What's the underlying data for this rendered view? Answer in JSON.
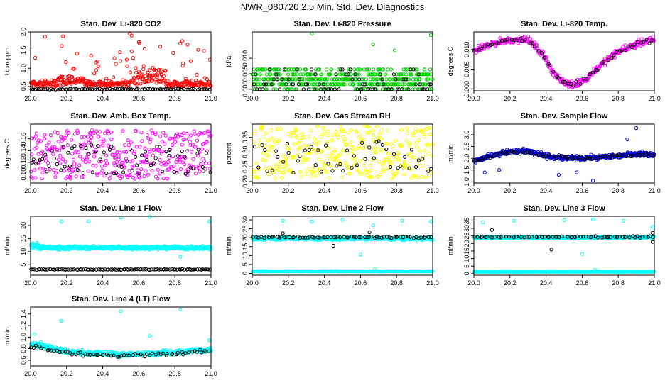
{
  "page": {
    "title": "NWR_080720  2.5 Min. Std. Dev. Diagnostics"
  },
  "chart_data": [
    {
      "type": "scatter",
      "title": "Stan. Dev. Li-820 CO2",
      "xlabel": "",
      "ylabel": "Licor ppm",
      "xlim": [
        20.0,
        21.0
      ],
      "ylim": [
        0.38,
        2.0
      ],
      "yticks": [
        0.5,
        1.0,
        1.5,
        2.0
      ],
      "grid": false,
      "series": [
        {
          "name": "",
          "color": "#ff0000",
          "gen": {
            "kind": "noise",
            "n": 380,
            "base": 0.57,
            "spread": 0.13,
            "spikes": 0.12,
            "spikeMax": 1.05,
            "bumps": [
              [
                20.55,
                20.75,
                0.4
              ],
              [
                20.15,
                20.3,
                0.15
              ]
            ],
            "outliers": [
              [
                20.08,
                1.87
              ],
              [
                20.18,
                1.88
              ],
              [
                20.55,
                1.95
              ],
              [
                20.56,
                1.9
              ],
              [
                20.6,
                1.72
              ],
              [
                20.84,
                1.75
              ],
              [
                20.87,
                1.65
              ]
            ]
          }
        },
        {
          "name": "",
          "color": "#000000",
          "gen": {
            "kind": "noise",
            "n": 90,
            "base": 0.42,
            "spread": 0.03,
            "spikes": 0.03,
            "spikeMax": 0.12
          }
        }
      ]
    },
    {
      "type": "scatter",
      "title": "Stan. Dev. Li-820 Pressure",
      "xlabel": "",
      "ylabel": "kPa",
      "xlim": [
        20.0,
        21.0
      ],
      "ylim": [
        -0.0005,
        0.0185
      ],
      "yticks": [
        0.0,
        0.005,
        0.01
      ],
      "ytickFormat": "0.000",
      "grid": false,
      "series": [
        {
          "name": "",
          "color": "#00cc00",
          "gen": {
            "kind": "levels",
            "n": 420,
            "levels": [
              0.0,
              0.0016,
              0.0032,
              0.0048,
              0.0064
            ],
            "weights": [
              2,
              3,
              3,
              3,
              2
            ],
            "outliers": [
              [
                20.33,
                0.018
              ],
              [
                20.67,
                0.0145
              ],
              [
                20.79,
                0.0125
              ],
              [
                20.99,
                0.0175
              ]
            ]
          }
        },
        {
          "name": "",
          "color": "#000000",
          "gen": {
            "kind": "levels",
            "n": 80,
            "levels": [
              0.0,
              0.0016,
              0.0032,
              0.0048,
              0.0064
            ],
            "weights": [
              4,
              2,
              2,
              1,
              1
            ]
          }
        }
      ]
    },
    {
      "type": "scatter",
      "title": "Stan. Dev. Li-820 Temp.",
      "xlabel": "",
      "ylabel": "degrees C",
      "xlim": [
        20.0,
        21.0
      ],
      "ylim": [
        -0.0005,
        0.0145
      ],
      "yticks": [
        0.0,
        0.005,
        0.01
      ],
      "ytickFormat": "0.000",
      "grid": false,
      "series": [
        {
          "name": "",
          "color": "#ff00ff",
          "gen": {
            "kind": "curve",
            "n": 340,
            "curve": [
              [
                20.0,
                0.0095
              ],
              [
                20.1,
                0.0115
              ],
              [
                20.2,
                0.0125
              ],
              [
                20.3,
                0.0125
              ],
              [
                20.38,
                0.009
              ],
              [
                20.45,
                0.0035
              ],
              [
                20.5,
                0.0015
              ],
              [
                20.55,
                0.001
              ],
              [
                20.62,
                0.0025
              ],
              [
                20.7,
                0.006
              ],
              [
                20.8,
                0.0095
              ],
              [
                20.9,
                0.0115
              ],
              [
                21.0,
                0.0125
              ]
            ],
            "spread": 0.0012
          }
        },
        {
          "name": "",
          "color": "#000000",
          "gen": {
            "kind": "curve",
            "n": 60,
            "curve": [
              [
                20.0,
                0.0095
              ],
              [
                20.1,
                0.0115
              ],
              [
                20.2,
                0.0125
              ],
              [
                20.3,
                0.0125
              ],
              [
                20.38,
                0.009
              ],
              [
                20.45,
                0.0035
              ],
              [
                20.5,
                0.0015
              ],
              [
                20.55,
                0.001
              ],
              [
                20.62,
                0.0025
              ],
              [
                20.7,
                0.006
              ],
              [
                20.8,
                0.0095
              ],
              [
                20.9,
                0.0115
              ],
              [
                21.0,
                0.0125
              ]
            ],
            "spread": 0.0008
          }
        }
      ]
    },
    {
      "type": "scatter",
      "title": "Stan. Dev. Amb. Box Temp.",
      "xlabel": "",
      "ylabel": "degrees C",
      "xlim": [
        20.0,
        21.0
      ],
      "ylim": [
        0.085,
        0.185
      ],
      "yticks": [
        0.1,
        0.12,
        0.14,
        0.16
      ],
      "grid": false,
      "series": [
        {
          "name": "",
          "color": "#ff00ff",
          "gen": {
            "kind": "uniform",
            "n": 360,
            "lo": 0.092,
            "hi": 0.175
          }
        },
        {
          "name": "",
          "color": "#000000",
          "gen": {
            "kind": "uniform",
            "n": 70,
            "lo": 0.1,
            "hi": 0.15
          }
        }
      ]
    },
    {
      "type": "scatter",
      "title": "Stan. Dev. Gas Stream RH",
      "xlabel": "",
      "ylabel": "percent",
      "xlim": [
        20.0,
        21.0
      ],
      "ylim": [
        0.195,
        0.395
      ],
      "yticks": [
        0.2,
        0.25,
        0.3,
        0.35
      ],
      "grid": false,
      "series": [
        {
          "name": "",
          "color": "#ffff00",
          "gen": {
            "kind": "uniform",
            "n": 360,
            "lo": 0.21,
            "hi": 0.39
          }
        },
        {
          "name": "",
          "color": "#000000",
          "gen": {
            "kind": "uniform",
            "n": 50,
            "lo": 0.23,
            "hi": 0.34
          }
        }
      ]
    },
    {
      "type": "scatter",
      "title": "Stan. Dev. Sample Flow",
      "xlabel": "",
      "ylabel": "ml/min",
      "xlim": [
        20.0,
        21.0
      ],
      "ylim": [
        0.95,
        3.45
      ],
      "yticks": [
        1.0,
        1.5,
        2.0,
        2.5,
        3.0
      ],
      "grid": false,
      "series": [
        {
          "name": "",
          "color": "#0000cc",
          "gen": {
            "kind": "curve",
            "n": 420,
            "curve": [
              [
                20.0,
                1.9
              ],
              [
                20.1,
                2.1
              ],
              [
                20.2,
                2.3
              ],
              [
                20.3,
                2.3
              ],
              [
                20.4,
                2.1
              ],
              [
                20.5,
                2.0
              ],
              [
                20.6,
                2.0
              ],
              [
                20.7,
                2.05
              ],
              [
                20.8,
                2.1
              ],
              [
                20.9,
                2.2
              ],
              [
                21.0,
                2.15
              ]
            ],
            "spread": 0.14,
            "outliers": [
              [
                20.06,
                1.4
              ],
              [
                20.14,
                1.5
              ],
              [
                20.47,
                1.3
              ],
              [
                20.57,
                1.4
              ],
              [
                20.66,
                1.05
              ],
              [
                20.9,
                3.28
              ],
              [
                20.85,
                2.8
              ]
            ]
          }
        },
        {
          "name": "",
          "color": "#000000",
          "gen": {
            "kind": "curve",
            "n": 60,
            "curve": [
              [
                20.0,
                1.9
              ],
              [
                20.2,
                2.3
              ],
              [
                20.4,
                2.1
              ],
              [
                20.6,
                2.0
              ],
              [
                20.8,
                2.1
              ],
              [
                21.0,
                2.15
              ]
            ],
            "spread": 0.1
          }
        }
      ]
    },
    {
      "type": "scatter",
      "title": "Stan. Dev. Line 1 Flow",
      "xlabel": "",
      "ylabel": "ml/min",
      "xlim": [
        20.0,
        21.0
      ],
      "ylim": [
        1.0,
        23.5
      ],
      "yticks": [
        5,
        10,
        15,
        20
      ],
      "grid": false,
      "series": [
        {
          "name": "",
          "color": "#00ffff",
          "gen": {
            "kind": "noise",
            "n": 440,
            "base": 11.5,
            "spread": 1.0,
            "spikes": 0.0,
            "spikeMax": 0,
            "bumps": [
              [
                20.0,
                20.04,
                1.5
              ]
            ],
            "outliers": [
              [
                20.17,
                21.5
              ],
              [
                20.32,
                21.5
              ],
              [
                20.5,
                23.0
              ],
              [
                20.66,
                23.3
              ],
              [
                20.99,
                21.5
              ],
              [
                20.83,
                8.0
              ]
            ]
          }
        },
        {
          "name": "",
          "color": "#000000",
          "gen": {
            "kind": "noise",
            "n": 100,
            "base": 3.2,
            "spread": 0.2,
            "spikes": 0.0,
            "spikeMax": 0
          }
        }
      ]
    },
    {
      "type": "scatter",
      "title": "Stan. Dev. Line 2 Flow",
      "xlabel": "",
      "ylabel": "ml/min",
      "xlim": [
        20.0,
        21.0
      ],
      "ylim": [
        -1.0,
        32.0
      ],
      "yticks": [
        0,
        5,
        10,
        15,
        20,
        25,
        30
      ],
      "grid": false,
      "series": [
        {
          "name": "",
          "color": "#00ffff",
          "gen": {
            "kind": "noise",
            "n": 360,
            "base": 19.5,
            "spread": 1.1,
            "spikes": 0.0,
            "spikeMax": 0,
            "outliers": [
              [
                20.17,
                29.5
              ],
              [
                20.33,
                29.0
              ],
              [
                20.5,
                30.0
              ],
              [
                20.6,
                10.5
              ],
              [
                20.67,
                27.0
              ],
              [
                20.83,
                29.5
              ],
              [
                20.99,
                29.0
              ]
            ]
          }
        },
        {
          "name": "",
          "color": "#00ffff",
          "gen": {
            "kind": "noise",
            "n": 300,
            "base": 1.2,
            "spread": 0.2,
            "spikes": 0.0,
            "spikeMax": 0,
            "outliers": [
              [
                20.68,
                2.5
              ]
            ]
          }
        },
        {
          "name": "",
          "color": "#000000",
          "gen": {
            "kind": "noise",
            "n": 70,
            "base": 20.3,
            "spread": 0.7,
            "spikes": 0.0,
            "spikeMax": 0,
            "outliers": [
              [
                20.45,
                15.5
              ],
              [
                20.17,
                22.5
              ],
              [
                20.65,
                23.0
              ]
            ]
          }
        }
      ]
    },
    {
      "type": "scatter",
      "title": "Stan. Dev. Line 3 Flow",
      "xlabel": "",
      "ylabel": "ml/min",
      "xlim": [
        20.0,
        21.0
      ],
      "ylim": [
        -1.0,
        38.0
      ],
      "yticks": [
        0,
        5,
        10,
        15,
        20,
        25,
        30,
        35
      ],
      "grid": false,
      "series": [
        {
          "name": "",
          "color": "#00ffff",
          "gen": {
            "kind": "noise",
            "n": 360,
            "base": 24.0,
            "spread": 1.0,
            "spikes": 0.0,
            "spikeMax": 0,
            "outliers": [
              [
                20.05,
                34.0
              ],
              [
                20.22,
                35.0
              ],
              [
                20.5,
                35.5
              ],
              [
                20.66,
                36.0
              ],
              [
                20.83,
                35.0
              ],
              [
                20.6,
                13.0
              ],
              [
                20.99,
                31.0
              ]
            ]
          }
        },
        {
          "name": "",
          "color": "#00ffff",
          "gen": {
            "kind": "noise",
            "n": 300,
            "base": 1.3,
            "spread": 0.2,
            "spikes": 0.0,
            "spikeMax": 0,
            "outliers": [
              [
                20.67,
                2.5
              ]
            ]
          }
        },
        {
          "name": "",
          "color": "#000000",
          "gen": {
            "kind": "noise",
            "n": 70,
            "base": 24.3,
            "spread": 0.8,
            "spikes": 0.0,
            "spikeMax": 0,
            "outliers": [
              [
                20.1,
                29.0
              ],
              [
                20.43,
                16.0
              ],
              [
                20.99,
                21.0
              ],
              [
                20.99,
                27.0
              ]
            ]
          }
        }
      ]
    },
    {
      "type": "scatter",
      "title": "Stan. Dev. Line 4 (LT) Flow",
      "xlabel": "",
      "ylabel": "ml/min",
      "xlim": [
        20.0,
        21.0
      ],
      "ylim": [
        0.5,
        1.52
      ],
      "yticks": [
        0.6,
        0.8,
        1.0,
        1.2,
        1.4
      ],
      "grid": false,
      "series": [
        {
          "name": "",
          "color": "#00ffff",
          "gen": {
            "kind": "curve",
            "n": 420,
            "curve": [
              [
                20.0,
                0.9
              ],
              [
                20.1,
                0.83
              ],
              [
                20.2,
                0.75
              ],
              [
                20.3,
                0.72
              ],
              [
                20.4,
                0.72
              ],
              [
                20.5,
                0.7
              ],
              [
                20.6,
                0.7
              ],
              [
                20.7,
                0.72
              ],
              [
                20.8,
                0.74
              ],
              [
                20.9,
                0.77
              ],
              [
                21.0,
                0.78
              ]
            ],
            "spread": 0.06,
            "outliers": [
              [
                20.02,
                1.05
              ],
              [
                20.17,
                1.28
              ],
              [
                20.5,
                1.45
              ],
              [
                20.83,
                1.48
              ],
              [
                20.66,
                1.02
              ],
              [
                20.99,
                0.95
              ]
            ]
          }
        },
        {
          "name": "",
          "color": "#000000",
          "gen": {
            "kind": "curve",
            "n": 70,
            "curve": [
              [
                20.0,
                0.85
              ],
              [
                20.1,
                0.78
              ],
              [
                20.3,
                0.7
              ],
              [
                20.5,
                0.68
              ],
              [
                20.7,
                0.7
              ],
              [
                20.9,
                0.75
              ],
              [
                21.0,
                0.78
              ]
            ],
            "spread": 0.05
          }
        }
      ]
    }
  ]
}
